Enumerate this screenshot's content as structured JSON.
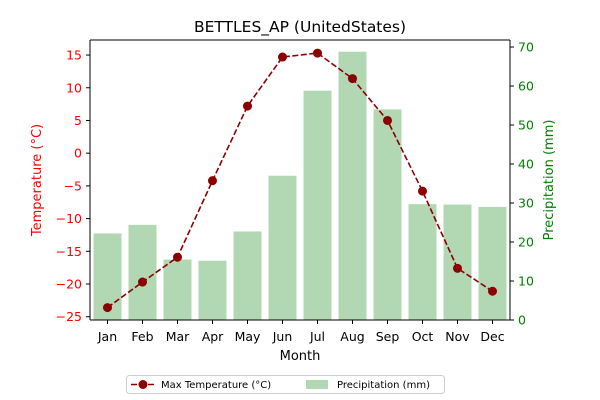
{
  "chart_data": {
    "type": "bar+line",
    "title": "BETTLES_AP (UnitedStates)",
    "xlabel": "Month",
    "ylabel_left": "Temperature (°C)",
    "ylabel_right": "Precipitation (mm)",
    "categories": [
      "Jan",
      "Feb",
      "Mar",
      "Apr",
      "May",
      "Jun",
      "Jul",
      "Aug",
      "Sep",
      "Oct",
      "Nov",
      "Dec"
    ],
    "y_left": {
      "ylim": [
        -25.5,
        17.3
      ],
      "ticks": [
        -25,
        -20,
        -15,
        -10,
        -5,
        0,
        5,
        10,
        15
      ]
    },
    "y_right": {
      "ylim": [
        0,
        71.8
      ],
      "ticks": [
        0,
        10,
        20,
        30,
        40,
        50,
        60,
        70
      ]
    },
    "grid": false,
    "legend_placement": "bottom-center, outside plot",
    "series": [
      {
        "name": "Max Temperature (°C)",
        "type": "line",
        "axis": "left",
        "color": "#8b0000",
        "style": "dashed with circle markers",
        "values": [
          -23.6,
          -19.7,
          -15.9,
          -4.2,
          7.2,
          14.7,
          15.3,
          11.4,
          5.0,
          -5.8,
          -17.6,
          -21.1
        ]
      },
      {
        "name": "Precipitation (mm)",
        "type": "bar",
        "axis": "right",
        "color": "#b1d8b2",
        "values": [
          22.2,
          24.4,
          15.5,
          15.2,
          22.7,
          37.0,
          58.8,
          68.8,
          54.0,
          29.7,
          29.6,
          29.0
        ]
      }
    ],
    "left_axis_color": "#ff0000",
    "right_axis_color": "#008000"
  }
}
